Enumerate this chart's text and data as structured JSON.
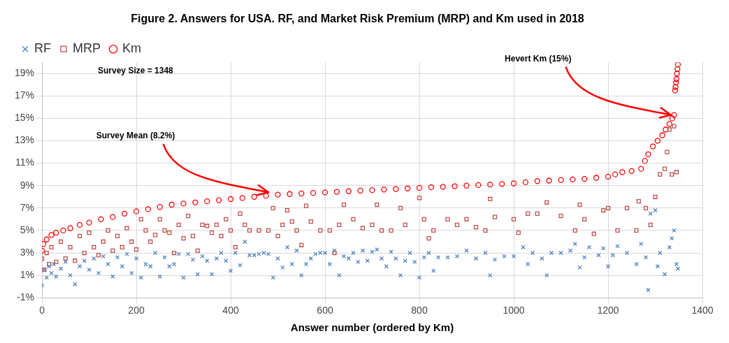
{
  "chart_data": {
    "type": "scatter",
    "title": "Figure 2. Answers for USA. RF, and Market Risk Premium (MRP) and Km used in 2018",
    "xlabel": "Answer number (ordered by Km)",
    "xlim": [
      0,
      1400
    ],
    "xticks": [
      0,
      200,
      400,
      600,
      800,
      1000,
      1200,
      1400
    ],
    "ylim": [
      -1,
      20
    ],
    "yticks": [
      {
        "value": -1,
        "label": "-1%"
      },
      {
        "value": 1,
        "label": "1%"
      },
      {
        "value": 3,
        "label": "3%"
      },
      {
        "value": 5,
        "label": "5%"
      },
      {
        "value": 7,
        "label": "7%"
      },
      {
        "value": 9,
        "label": "9%"
      },
      {
        "value": 11,
        "label": "11%"
      },
      {
        "value": 13,
        "label": "13%"
      },
      {
        "value": 15,
        "label": "15%"
      },
      {
        "value": 17,
        "label": "17%"
      },
      {
        "value": 19,
        "label": "19%"
      }
    ],
    "grid": true,
    "legend": "top left",
    "annotations": [
      "Survey Size = 1348",
      {
        "text": "Survey Mean (8.2%)",
        "x": 480,
        "y": 8.1
      },
      {
        "text": "Hevert Km (15%)",
        "x": 1333,
        "y": 15
      }
    ],
    "series": [
      {
        "name": "RF",
        "color": "#4f81bd",
        "marker": "cross",
        "x": [
          0,
          5,
          10,
          15,
          20,
          25,
          30,
          40,
          50,
          60,
          70,
          80,
          90,
          100,
          110,
          120,
          130,
          140,
          150,
          160,
          170,
          180,
          190,
          200,
          210,
          220,
          230,
          240,
          250,
          260,
          270,
          280,
          290,
          300,
          310,
          320,
          330,
          340,
          350,
          360,
          370,
          380,
          390,
          400,
          410,
          420,
          430,
          440,
          450,
          460,
          470,
          480,
          490,
          500,
          510,
          520,
          530,
          540,
          550,
          560,
          570,
          580,
          590,
          600,
          610,
          620,
          630,
          640,
          650,
          660,
          670,
          680,
          690,
          700,
          710,
          720,
          730,
          740,
          750,
          760,
          770,
          780,
          790,
          800,
          810,
          820,
          830,
          840,
          860,
          880,
          900,
          920,
          940,
          950,
          960,
          980,
          1000,
          1020,
          1030,
          1040,
          1060,
          1070,
          1080,
          1100,
          1120,
          1130,
          1140,
          1150,
          1160,
          1180,
          1190,
          1200,
          1210,
          1220,
          1240,
          1260,
          1270,
          1280,
          1285,
          1290,
          1300,
          1305,
          1310,
          1320,
          1330,
          1335,
          1340,
          1345,
          1348
        ],
        "values": [
          0.1,
          1.5,
          0.8,
          1.8,
          1.2,
          2,
          0.9,
          1.6,
          2.2,
          1,
          0.2,
          1.8,
          2.3,
          1.5,
          2.5,
          1.2,
          2.7,
          2,
          0.9,
          2.6,
          1.8,
          2.9,
          1.2,
          2.5,
          0.8,
          2,
          1.8,
          3,
          0.9,
          2.6,
          1.8,
          2,
          2.9,
          0.8,
          2.9,
          2.4,
          1.1,
          2.7,
          2.3,
          1.1,
          2.5,
          3,
          2.3,
          1.4,
          3,
          1.9,
          4,
          2.8,
          2.8,
          2.9,
          3,
          2.9,
          0.8,
          2.5,
          1.7,
          3.5,
          2,
          3.2,
          1,
          2,
          2.5,
          2.9,
          3,
          3,
          2,
          3.2,
          1,
          2.7,
          2.5,
          3,
          2.2,
          3.2,
          2.3,
          3.1,
          3.3,
          2.5,
          1.8,
          3.1,
          2.5,
          1,
          2.3,
          3,
          2.2,
          0.8,
          2.6,
          3,
          1.4,
          2.6,
          2.6,
          2.7,
          3.2,
          2.5,
          3,
          1,
          2.4,
          2.7,
          2.7,
          3.5,
          2,
          3,
          2.5,
          1,
          3,
          3,
          3.2,
          3.8,
          1.7,
          2.6,
          3.5,
          2.8,
          3.4,
          1.8,
          2.8,
          3.6,
          3,
          2,
          3.8,
          2.6,
          -0.3,
          6.5,
          6.8,
          1.8,
          3,
          1.1,
          3.5,
          4.3,
          5,
          2,
          1.6
        ]
      },
      {
        "name": "MRP",
        "color": "#c0504d",
        "marker": "square",
        "x": [
          0,
          5,
          10,
          15,
          20,
          30,
          40,
          50,
          60,
          70,
          80,
          90,
          100,
          110,
          120,
          130,
          140,
          150,
          160,
          170,
          180,
          190,
          200,
          210,
          220,
          230,
          240,
          250,
          260,
          270,
          280,
          290,
          300,
          310,
          320,
          330,
          340,
          350,
          360,
          370,
          380,
          390,
          400,
          410,
          420,
          430,
          440,
          460,
          480,
          490,
          500,
          510,
          520,
          530,
          540,
          550,
          560,
          570,
          590,
          610,
          620,
          630,
          640,
          660,
          680,
          700,
          710,
          720,
          740,
          760,
          770,
          800,
          810,
          820,
          830,
          860,
          880,
          900,
          920,
          940,
          950,
          960,
          1000,
          1010,
          1030,
          1050,
          1070,
          1100,
          1130,
          1140,
          1150,
          1170,
          1190,
          1200,
          1220,
          1240,
          1260,
          1265,
          1280,
          1290,
          1300,
          1310,
          1320,
          1325,
          1330,
          1335,
          1340,
          1345
        ],
        "values": [
          2.5,
          1.5,
          3,
          2,
          3.5,
          2.2,
          4,
          2.5,
          3.5,
          2.3,
          4.5,
          3,
          4.8,
          3.5,
          2.8,
          4,
          5,
          3.2,
          4.5,
          3.5,
          5.2,
          4,
          3.3,
          6,
          5,
          4,
          4.6,
          6,
          5,
          4.8,
          3,
          5.5,
          4.3,
          6.3,
          4.5,
          3.2,
          5.5,
          5.4,
          4.8,
          5.5,
          4.5,
          6,
          5,
          3.5,
          6.5,
          5.5,
          5,
          5,
          5,
          7,
          4.5,
          5.5,
          6.8,
          5.8,
          5,
          3.7,
          7.2,
          5.8,
          5,
          5,
          3,
          5.5,
          7.3,
          6,
          5.2,
          5.5,
          7.3,
          5,
          5,
          7,
          5.5,
          7.9,
          6,
          4.3,
          5,
          6,
          5.5,
          6,
          5.3,
          5,
          7.8,
          6.2,
          6,
          4.8,
          6.5,
          6.5,
          7.5,
          6.3,
          5,
          7.3,
          6,
          4.7,
          6.8,
          7,
          5,
          7,
          5,
          7.6,
          7,
          5.5,
          8,
          10,
          10.5,
          12,
          14,
          10,
          14.3,
          10.2
        ]
      },
      {
        "name": "Km",
        "color": "#ff0000",
        "marker": "circle",
        "x": [
          0,
          3,
          10,
          20,
          30,
          45,
          60,
          80,
          100,
          125,
          150,
          175,
          200,
          225,
          250,
          275,
          300,
          325,
          350,
          375,
          400,
          425,
          450,
          475,
          500,
          525,
          550,
          575,
          600,
          625,
          650,
          675,
          700,
          725,
          750,
          775,
          800,
          825,
          850,
          875,
          900,
          925,
          950,
          975,
          1000,
          1025,
          1050,
          1075,
          1100,
          1125,
          1150,
          1175,
          1200,
          1215,
          1230,
          1250,
          1270,
          1278,
          1285,
          1295,
          1305,
          1315,
          1322,
          1330,
          1336,
          1340,
          1342,
          1343,
          1344,
          1345,
          1346,
          1347,
          1348
        ],
        "values": [
          3.2,
          3.8,
          4.2,
          4.6,
          4.8,
          5,
          5.2,
          5.5,
          5.7,
          6,
          6.2,
          6.5,
          6.7,
          6.9,
          7.1,
          7.3,
          7.4,
          7.5,
          7.6,
          7.7,
          7.8,
          7.9,
          8,
          8.1,
          8.2,
          8.25,
          8.3,
          8.35,
          8.4,
          8.45,
          8.5,
          8.55,
          8.6,
          8.65,
          8.7,
          8.75,
          8.8,
          8.85,
          8.9,
          8.95,
          9,
          9.05,
          9.1,
          9.15,
          9.2,
          9.3,
          9.4,
          9.45,
          9.5,
          9.55,
          9.6,
          9.7,
          9.8,
          10,
          10.2,
          10.3,
          10.5,
          11.2,
          11.8,
          12.5,
          13,
          13.5,
          14,
          14.5,
          15,
          15.3,
          17.5,
          17.8,
          18.2,
          18.5,
          19,
          19.4,
          19.8
        ]
      }
    ]
  }
}
